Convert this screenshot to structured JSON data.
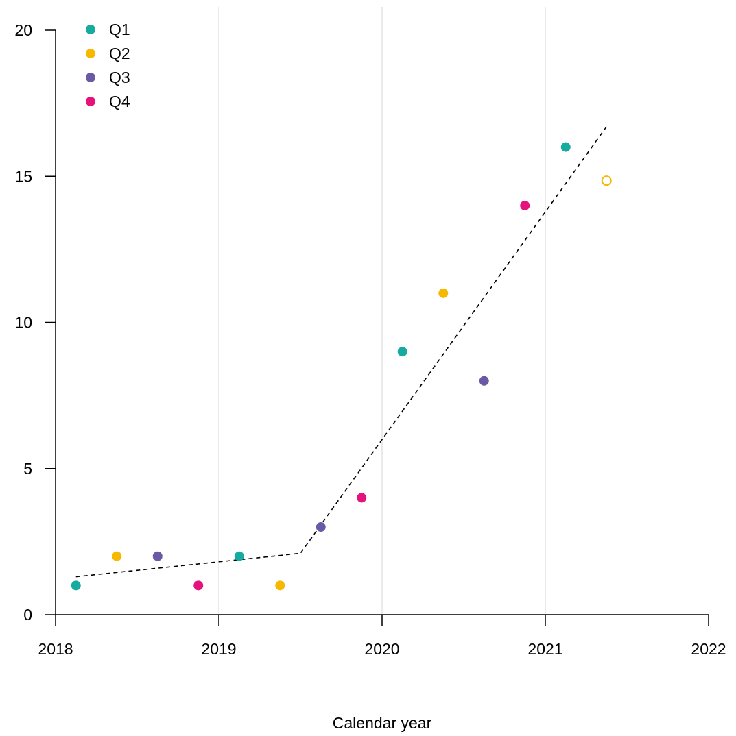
{
  "chart_data": {
    "type": "scatter",
    "title": "",
    "xlabel": "Calendar year",
    "ylabel": "",
    "xlim": [
      2018,
      2022
    ],
    "ylim": [
      0,
      20
    ],
    "x_ticks": [
      "2018",
      "2019",
      "2020",
      "2021",
      "2022"
    ],
    "y_ticks": [
      "0",
      "5",
      "10",
      "15",
      "20"
    ],
    "grid": "vertical lines at years",
    "legend_position": "top-left",
    "colors": {
      "Q1": "#17aaa0",
      "Q2": "#f6b800",
      "Q3": "#6a5aa6",
      "Q4": "#e5117c",
      "trend": "#000000",
      "grid": "#dddddd"
    },
    "series": [
      {
        "name": "Q1",
        "points": [
          {
            "x": 2018.125,
            "y": 1
          },
          {
            "x": 2019.125,
            "y": 2
          },
          {
            "x": 2020.125,
            "y": 9
          },
          {
            "x": 2021.125,
            "y": 16
          }
        ]
      },
      {
        "name": "Q2",
        "points": [
          {
            "x": 2018.375,
            "y": 2
          },
          {
            "x": 2019.375,
            "y": 1
          },
          {
            "x": 2020.375,
            "y": 11
          },
          {
            "x": 2021.375,
            "y": 14.85,
            "hollow": true
          }
        ]
      },
      {
        "name": "Q3",
        "points": [
          {
            "x": 2018.625,
            "y": 2
          },
          {
            "x": 2019.625,
            "y": 3
          },
          {
            "x": 2020.625,
            "y": 8
          }
        ]
      },
      {
        "name": "Q4",
        "points": [
          {
            "x": 2018.875,
            "y": 1
          },
          {
            "x": 2019.875,
            "y": 4
          },
          {
            "x": 2020.875,
            "y": 14
          }
        ]
      }
    ],
    "trend_line": {
      "style": "dashed",
      "points": [
        {
          "x": 2018.125,
          "y": 1.3
        },
        {
          "x": 2019.5,
          "y": 2.1
        },
        {
          "x": 2021.375,
          "y": 16.7
        }
      ]
    }
  }
}
